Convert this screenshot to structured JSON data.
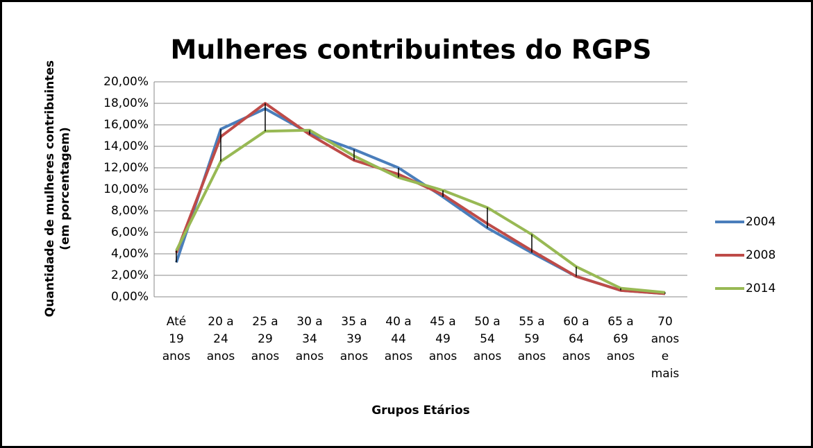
{
  "chart_data": {
    "type": "line",
    "title": "Mulheres contribuintes do RGPS",
    "x_label": "Grupos Etários",
    "y_label": "Quantidade  de mulheres contribuintes (em porcentagem)",
    "categories": [
      "Até 19 anos",
      "20 a 24 anos",
      "25 a 29 anos",
      "30 a 34 anos",
      "35 a 39 anos",
      "40 a 44 anos",
      "45 a 49 anos",
      "50 a 54 anos",
      "55 a 59 anos",
      "60 a 64 anos",
      "65 a 69 anos",
      "70 anos e mais"
    ],
    "series": [
      {
        "name": "2004",
        "color": "#4a7ebb",
        "values": [
          3.2,
          15.6,
          17.5,
          15.2,
          13.7,
          12.0,
          9.3,
          6.4,
          4.1,
          1.9,
          0.6,
          0.3
        ]
      },
      {
        "name": "2008",
        "color": "#be4b48",
        "values": [
          4.1,
          14.9,
          18.0,
          15.1,
          12.7,
          11.4,
          9.5,
          6.8,
          4.3,
          1.9,
          0.6,
          0.3
        ]
      },
      {
        "name": "2014",
        "color": "#98b954",
        "values": [
          4.3,
          12.6,
          15.4,
          15.5,
          13.1,
          11.1,
          9.9,
          8.3,
          5.8,
          2.8,
          0.8,
          0.4
        ]
      }
    ],
    "ylim": [
      0,
      20
    ],
    "yticks": [
      {
        "value": 0,
        "label": "0,00%"
      },
      {
        "value": 2,
        "label": "2,00%"
      },
      {
        "value": 4,
        "label": "4,00%"
      },
      {
        "value": 6,
        "label": "6,00%"
      },
      {
        "value": 8,
        "label": "8,00%"
      },
      {
        "value": 10,
        "label": "10,00%"
      },
      {
        "value": 12,
        "label": "12,00%"
      },
      {
        "value": 14,
        "label": "14,00%"
      },
      {
        "value": 16,
        "label": "16,00%"
      },
      {
        "value": 18,
        "label": "18,00%"
      },
      {
        "value": 20,
        "label": "20,00%"
      }
    ],
    "grid": true,
    "high_low_lines": true,
    "legend": "right"
  }
}
